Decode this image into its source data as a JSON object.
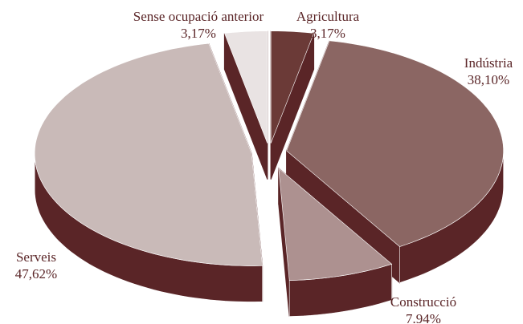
{
  "chart_data": {
    "type": "pie3d",
    "categories": [
      "Agricultura",
      "Indústria",
      "Construcció",
      "Serveis",
      "Sense ocupació anterior"
    ],
    "values": [
      3.17,
      38.1,
      7.94,
      47.62,
      3.17
    ],
    "value_labels": [
      "3,17%",
      "38,10%",
      "7.94%",
      "47,62%",
      "3,17%"
    ],
    "colors": [
      "#6b3a37",
      "#8b6663",
      "#ad9190",
      "#c9bab8",
      "#e9e3e3"
    ],
    "side_color": "#5a2527"
  }
}
